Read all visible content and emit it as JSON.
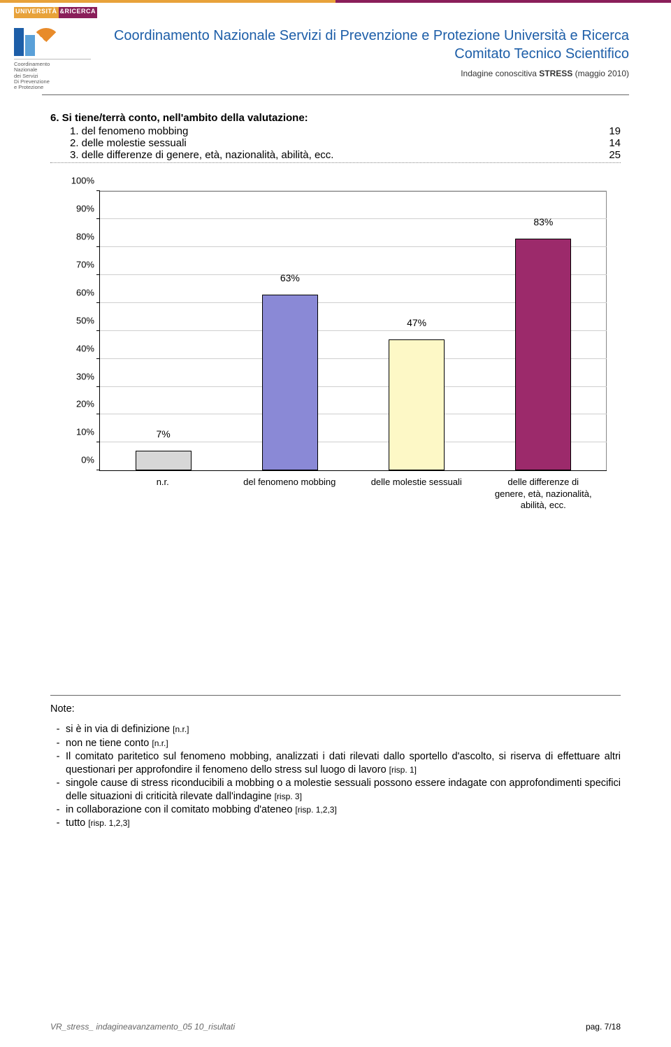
{
  "banner": {
    "left_color": "#e8a23a",
    "right_color": "#8a1e5a"
  },
  "header": {
    "logo_ur_left": "UNIVERSITÀ",
    "logo_ur_right": "&RICERCA",
    "logo_sub": "Coordinamento\nNazionale\ndei Servizi\nDi Prevenzione\ne Protezione",
    "title_line1": "Coordinamento Nazionale Servizi di Prevenzione e Protezione Università e Ricerca",
    "title_line2": "Comitato Tecnico Scientifico",
    "subtitle_prefix": "Indagine conoscitiva ",
    "subtitle_bold": "STRESS",
    "subtitle_suffix": " (maggio 2010)"
  },
  "question": {
    "title": "6. Si tiene/terrà conto, nell'ambito della valutazione:",
    "rows": [
      {
        "label": "1. del fenomeno mobbing",
        "value": "19"
      },
      {
        "label": "2. delle molestie sessuali",
        "value": "14"
      },
      {
        "label": "3. delle differenze di genere, età, nazionalità, abilità, ecc.",
        "value": "25"
      }
    ]
  },
  "chart": {
    "ymax": 100,
    "ytick_step": 10,
    "yticks": [
      "0%",
      "10%",
      "20%",
      "30%",
      "40%",
      "50%",
      "60%",
      "70%",
      "80%",
      "90%",
      "100%"
    ],
    "bars": [
      {
        "xlabel": "n.r.",
        "value": 7,
        "label": "7%",
        "color": "#d7d7d7",
        "xpos": 12.5
      },
      {
        "xlabel": "del fenomeno mobbing",
        "value": 63,
        "label": "63%",
        "color": "#8a89d6",
        "xpos": 37.5
      },
      {
        "xlabel": "delle molestie sessuali",
        "value": 47,
        "label": "47%",
        "color": "#fdf8c6",
        "xpos": 62.5
      },
      {
        "xlabel": "delle differenze di\ngenere, età, nazionalità,\nabilità, ecc.",
        "value": 83,
        "label": "83%",
        "color": "#9c2a6b",
        "xpos": 87.5
      }
    ],
    "grid_color": "#cfcfcf",
    "label_fontsize": 13
  },
  "notes": {
    "title": "Note:",
    "items": [
      {
        "text": "si è in via di definizione ",
        "risp": "[n.r.]"
      },
      {
        "text": "non ne tiene conto ",
        "risp": "[n.r.]"
      },
      {
        "text": "Il comitato paritetico sul fenomeno mobbing, analizzati i dati rilevati dallo sportello d'ascolto, si riserva di effettuare altri questionari per approfondire il fenomeno dello stress sul luogo di lavoro ",
        "risp": "[risp. 1]"
      },
      {
        "text": "singole cause di stress riconducibili a mobbing o a molestie sessuali possono essere indagate con approfondimenti specifici delle situazioni di criticità rilevate dall'indagine ",
        "risp": "[risp. 3]"
      },
      {
        "text": "in collaborazione con il comitato mobbing d'ateneo ",
        "risp": "[risp. 1,2,3]"
      },
      {
        "text": "tutto ",
        "risp": "[risp. 1,2,3]"
      }
    ]
  },
  "footer": {
    "left": "VR_stress_ indagineavanzamento_05 10_risultati",
    "right": "pag. 7/18"
  }
}
